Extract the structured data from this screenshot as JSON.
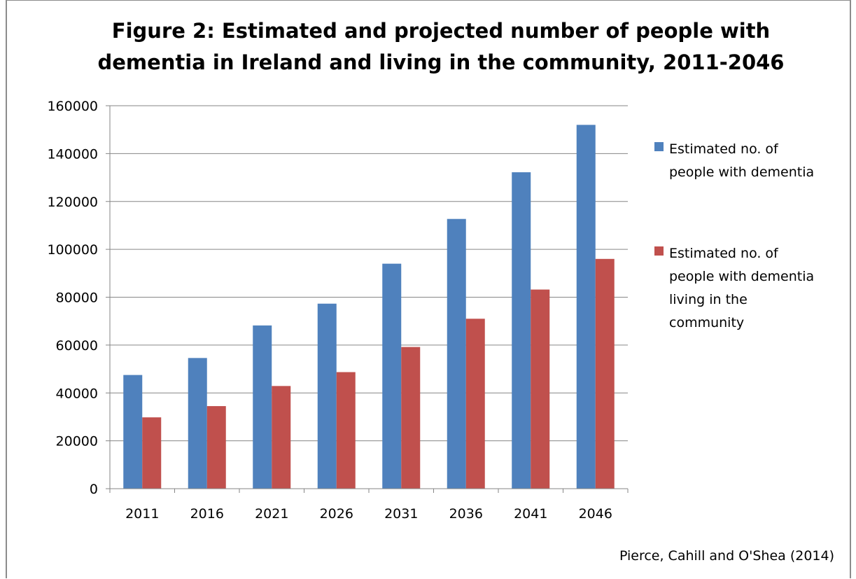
{
  "chart_data": {
    "type": "bar",
    "title_lines": [
      "Figure 2: Estimated and projected number of people with",
      "dementia in Ireland and living in the community, 2011-2046"
    ],
    "categories": [
      "2011",
      "2016",
      "2021",
      "2026",
      "2031",
      "2036",
      "2041",
      "2046"
    ],
    "series": [
      {
        "name_lines": [
          "Estimated no. of",
          "people with dementia"
        ],
        "color": "#4F81BD",
        "values": [
          47500,
          54600,
          68200,
          77300,
          94000,
          112700,
          132200,
          152000
        ]
      },
      {
        "name_lines": [
          "Estimated no. of",
          "people with dementia",
          "living in the",
          "community"
        ],
        "color": "#C0504D",
        "values": [
          29800,
          34500,
          42900,
          48700,
          59200,
          71000,
          83200,
          96000
        ]
      }
    ],
    "y_ticks": [
      "0",
      "20000",
      "40000",
      "60000",
      "80000",
      "100000",
      "120000",
      "140000",
      "160000"
    ],
    "ylim": [
      0,
      160000
    ],
    "grid": true,
    "legend_position": "right",
    "source": "Pierce, Cahill and O'Shea (2014)"
  }
}
